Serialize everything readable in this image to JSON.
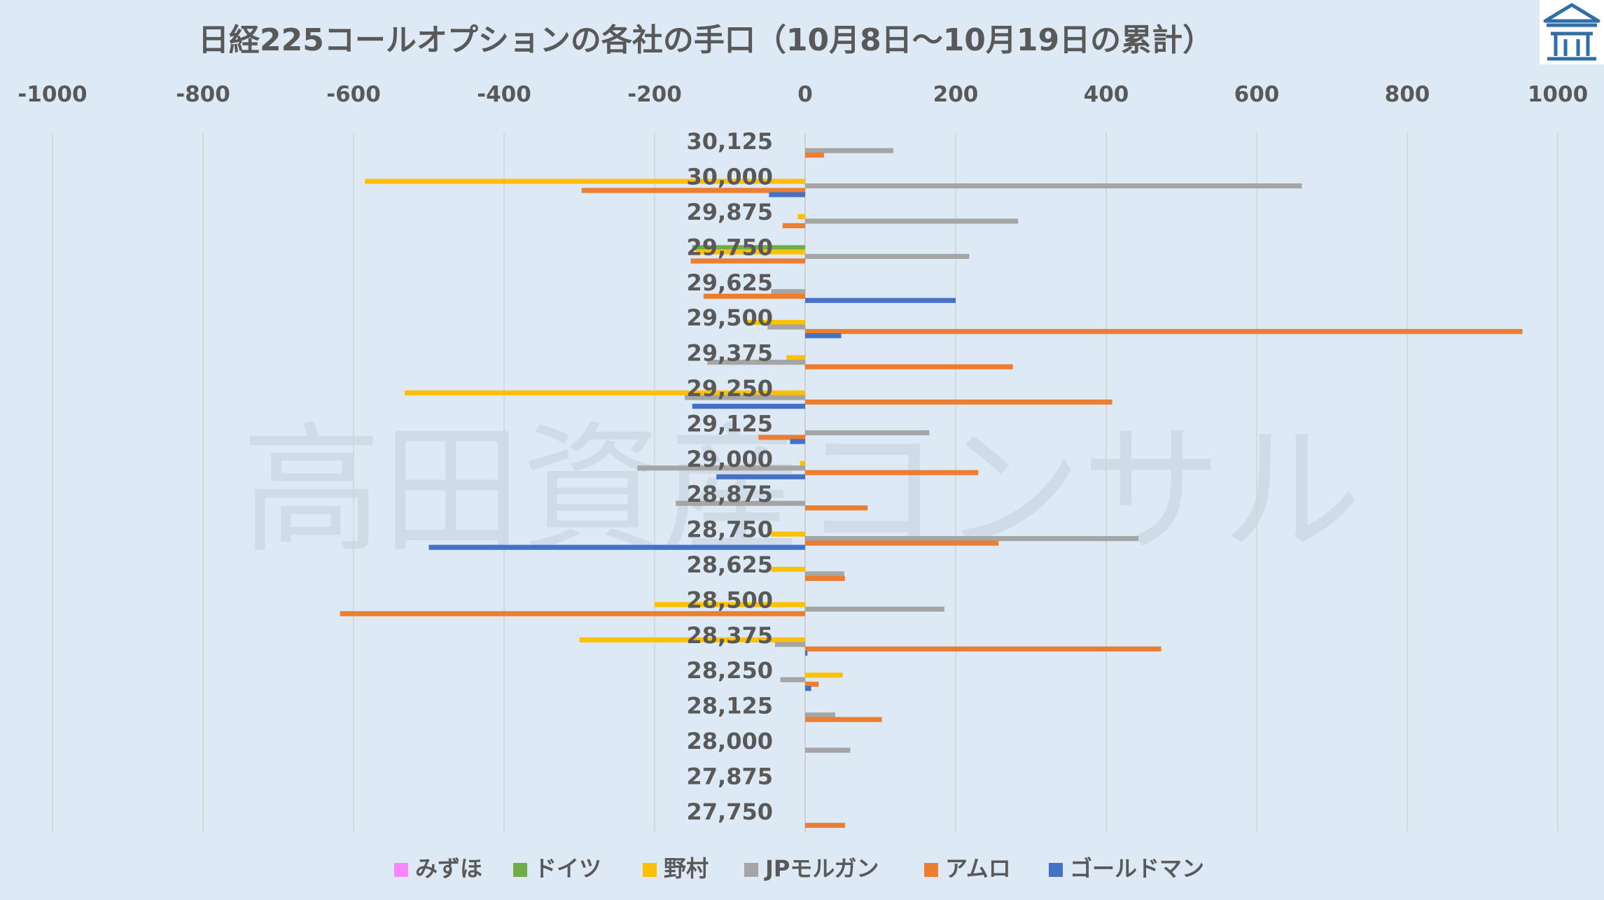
{
  "chart_data": {
    "type": "bar",
    "orientation": "horizontal",
    "title": "日経225コールオプションの各社の手口（10月8日〜10月19日の累計）",
    "watermark": "高田資産コンサル",
    "logo_icon": "house-logo-icon",
    "xlim": [
      -1000,
      1000
    ],
    "x_ticks": [
      -1000,
      -800,
      -600,
      -400,
      -200,
      0,
      200,
      400,
      600,
      800,
      1000
    ],
    "x_tick_labels": [
      "-1000",
      "-800",
      "-600",
      "-400",
      "-200",
      "0",
      "200",
      "400",
      "600",
      "800",
      "1000"
    ],
    "grid": true,
    "legend_position": "bottom",
    "categories": [
      "30,125",
      "30,000",
      "29,875",
      "29,750",
      "29,625",
      "29,500",
      "29,375",
      "29,250",
      "29,125",
      "29,000",
      "28,875",
      "28,750",
      "28,625",
      "28,500",
      "28,375",
      "28,250",
      "28,125",
      "28,000",
      "27,875",
      "27,750"
    ],
    "series": [
      {
        "name": "みずほ",
        "color": "#ff85ff",
        "values": [
          0,
          0,
          0,
          0,
          0,
          0,
          0,
          0,
          0,
          0,
          0,
          0,
          0,
          0,
          0,
          0,
          0,
          0,
          0,
          0
        ]
      },
      {
        "name": "ドイツ",
        "color": "#70ad47",
        "values": [
          0,
          0,
          0,
          -150,
          0,
          0,
          0,
          0,
          0,
          0,
          0,
          0,
          0,
          0,
          0,
          0,
          0,
          0,
          0,
          0
        ]
      },
      {
        "name": "野村",
        "color": "#ffc000",
        "values": [
          0,
          -585,
          -10,
          -145,
          0,
          -80,
          -25,
          -532,
          0,
          -7,
          0,
          -45,
          -45,
          -200,
          -300,
          50,
          0,
          0,
          0,
          0
        ]
      },
      {
        "name": "JPモルガン",
        "color": "#a5a5a5",
        "values": [
          117,
          660,
          283,
          218,
          -45,
          -50,
          -130,
          -160,
          165,
          -223,
          -172,
          443,
          52,
          185,
          -40,
          -33,
          40,
          60,
          0,
          0
        ]
      },
      {
        "name": "アムロ",
        "color": "#ed7d31",
        "values": [
          25,
          -297,
          -30,
          -152,
          -135,
          953,
          276,
          408,
          -62,
          230,
          83,
          257,
          53,
          -618,
          473,
          18,
          102,
          0,
          0,
          53
        ]
      },
      {
        "name": "ゴールドマン",
        "color": "#4472c4",
        "values": [
          0,
          -48,
          0,
          0,
          200,
          48,
          0,
          -150,
          -20,
          -118,
          0,
          -500,
          0,
          0,
          3,
          8,
          0,
          0,
          0,
          0
        ]
      }
    ]
  }
}
